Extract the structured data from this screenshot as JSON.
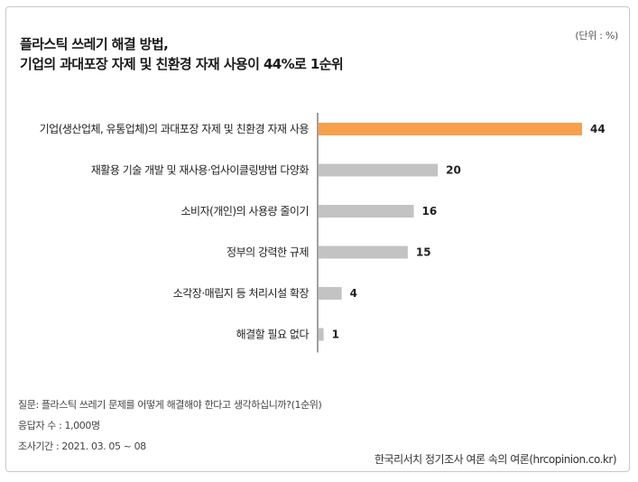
{
  "unit_note": "(단위 : %)",
  "footer": {
    "question": "질문: 플라스틱 쓰레기 문제를 어떻게 해결해야 한다고 생각하십니까?(1순위)",
    "respondents": "응답자 수 : 1,000명",
    "period": "조사기간 : 2021. 03. 05 ~ 08",
    "source": "한국리서치 정기조사 여론 속의 여론(hrcopinion.co.kr)"
  },
  "chart_data": {
    "type": "bar",
    "orientation": "horizontal",
    "title": "플라스틱 쓰레기 해결 방법,",
    "subtitle": "기업의 과대포장 자제 및 친환경 자재 사용이 44%로 1순위",
    "categories": [
      "기업(생산업체, 유통업체)의 과대포장 자제 및 친환경 자재 사용",
      "재활용 기술 개발 및 재사용·업사이클링방법 다양화",
      "소비자(개인)의 사용량 줄이기",
      "정부의 강력한 규제",
      "소각장·매립지 등 처리시설 확장",
      "해결할 필요 없다"
    ],
    "values": [
      44,
      20,
      16,
      15,
      4,
      1
    ],
    "xlim": [
      0,
      44
    ],
    "grid": false,
    "legend": "none",
    "colors": {
      "highlight": "#f6a04d",
      "default": "#c3c3c3",
      "axis": "#a0a0a0"
    },
    "highlight_index": 0
  }
}
